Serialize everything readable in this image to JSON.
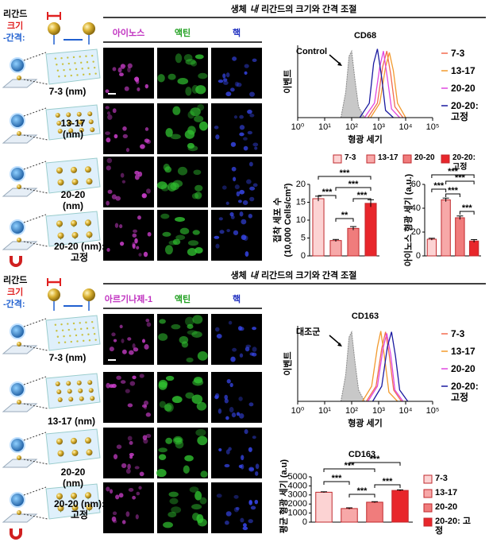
{
  "panels": [
    {
      "title": [
        "생체",
        "내",
        "리간드의 크기와 간격 조절"
      ],
      "ligand": {
        "label": "리간드",
        "size": "크기",
        "spacing": "-간격:"
      },
      "columns": [
        "아이노스",
        "액틴",
        "핵"
      ],
      "rows": [
        "7-3 (nm)",
        "13-17 (nm)",
        "20-20 (nm)",
        "20-20 (nm): 고정"
      ],
      "flow": {
        "type": "line",
        "title": "CD68",
        "x_label": "형광 세기",
        "y_label": "이벤트",
        "xscale": "log",
        "xlim": [
          1,
          100000
        ],
        "xticks": [
          {
            "value": 1,
            "label": "10⁰"
          },
          {
            "value": 10,
            "label": "10¹"
          },
          {
            "value": 100,
            "label": "10²"
          },
          {
            "value": 1000,
            "label": "10³"
          },
          {
            "value": 10000,
            "label": "10⁴"
          },
          {
            "value": 100000,
            "label": "10⁵"
          }
        ],
        "ylim": [
          0,
          100
        ],
        "control": {
          "label": "Control",
          "color": "#c8c8c8",
          "x": [
            40,
            60,
            80,
            100,
            130,
            180,
            300
          ],
          "values": [
            0,
            35,
            85,
            92,
            55,
            15,
            0
          ]
        },
        "series": [
          {
            "name": "7-3",
            "color": "#f26b4f",
            "x": [
              400,
              900,
              1400,
              2000,
              2800,
              4000,
              8000
            ],
            "values": [
              0,
              20,
              70,
              92,
              60,
              15,
              0
            ]
          },
          {
            "name": "13-17",
            "color": "#f29a2e",
            "x": [
              500,
              1100,
              1800,
              2500,
              3500,
              5000,
              10000
            ],
            "values": [
              0,
              20,
              70,
              90,
              65,
              20,
              0
            ]
          },
          {
            "name": "20-20",
            "color": "#e048e0",
            "x": [
              300,
              700,
              1100,
              1500,
              2100,
              3000,
              6000
            ],
            "values": [
              0,
              20,
              70,
              92,
              55,
              12,
              0
            ]
          },
          {
            "name": "20-20: 고정",
            "color": "#1a1aa0",
            "x": [
              200,
              450,
              650,
              900,
              1300,
              1800,
              3500
            ],
            "values": [
              0,
              20,
              75,
              95,
              55,
              10,
              0
            ]
          }
        ]
      },
      "bar_legend": {
        "labels": [
          "7-3",
          "13-17",
          "20-20",
          "20-20: 고정"
        ],
        "colors": [
          "#fcd3d3",
          "#f7a8a8",
          "#f07c7c",
          "#e8262b"
        ]
      },
      "bars": [
        {
          "type": "bar",
          "y_label": [
            "접착 세포 수",
            "(10,000 Cells/cm²)"
          ],
          "values": [
            16,
            4.3,
            7.7,
            14.7
          ],
          "errors": [
            0.7,
            0.3,
            0.5,
            1.0
          ],
          "ylim": [
            0,
            20
          ],
          "yticks": [
            0,
            5,
            10,
            15,
            20
          ],
          "significance": [
            "***",
            "***",
            "***",
            "**",
            "***"
          ]
        },
        {
          "type": "bar",
          "y_label": [
            "아이노스 형광 세기 (a.u.)"
          ],
          "values": [
            14,
            47,
            32,
            12.5
          ],
          "errors": [
            0.8,
            1.5,
            1.5,
            1.2
          ],
          "ylim": [
            0,
            60
          ],
          "yticks": [
            0,
            20,
            40,
            60
          ],
          "significance": [
            "***",
            "***",
            "***",
            "***",
            "***"
          ]
        }
      ]
    },
    {
      "title": [
        "생체",
        "내",
        "리간드의 크기와 간격 조절"
      ],
      "ligand": {
        "label": "리간드",
        "size": "크기",
        "spacing": "-간격:"
      },
      "columns": [
        "아르기나제-1",
        "액틴",
        "핵"
      ],
      "rows": [
        "7-3 (nm)",
        "13-17 (nm)",
        "20-20 (nm)",
        "20-20 (nm): 고정"
      ],
      "flow": {
        "type": "line",
        "title": "CD163",
        "x_label": "형광 세기",
        "y_label": "이벤트",
        "xscale": "log",
        "xlim": [
          1,
          100000
        ],
        "xticks": [
          {
            "value": 1,
            "label": "10⁰"
          },
          {
            "value": 10,
            "label": "10¹"
          },
          {
            "value": 100,
            "label": "10²"
          },
          {
            "value": 1000,
            "label": "10³"
          },
          {
            "value": 10000,
            "label": "10⁴"
          },
          {
            "value": 100000,
            "label": "10⁵"
          }
        ],
        "ylim": [
          0,
          100
        ],
        "control": {
          "label": "대조군",
          "color": "#c8c8c8",
          "x": [
            40,
            60,
            80,
            100,
            130,
            180,
            300
          ],
          "values": [
            0,
            35,
            85,
            92,
            55,
            15,
            0
          ]
        },
        "series": [
          {
            "name": "7-3",
            "color": "#f26b4f",
            "x": [
              350,
              800,
              1300,
              1800,
              2500,
              3600,
              7000
            ],
            "values": [
              0,
              20,
              70,
              92,
              60,
              15,
              0
            ]
          },
          {
            "name": "13-17",
            "color": "#f29a2e",
            "x": [
              250,
              550,
              900,
              1200,
              1700,
              2400,
              5000
            ],
            "values": [
              0,
              20,
              72,
              93,
              55,
              12,
              0
            ]
          },
          {
            "name": "20-20",
            "color": "#e048e0",
            "x": [
              400,
              900,
              1450,
              2000,
              2800,
              4000,
              8000
            ],
            "values": [
              0,
              20,
              70,
              90,
              62,
              15,
              0
            ]
          },
          {
            "name": "20-20: 고정",
            "color": "#1a1aa0",
            "x": [
              600,
              1300,
              2100,
              3000,
              4200,
              6000,
              12000
            ],
            "values": [
              0,
              20,
              72,
              92,
              60,
              15,
              0
            ]
          }
        ]
      },
      "bar_legend": {
        "labels": [
          "7-3",
          "13-17",
          "20-20",
          "20-20: 고정"
        ],
        "colors": [
          "#fcd3d3",
          "#f7a8a8",
          "#f07c7c",
          "#e8262b"
        ]
      },
      "bars": [
        {
          "type": "bar",
          "title": "CD163",
          "y_label": [
            "평균 형광 세기 (a.u)"
          ],
          "values": [
            3300,
            1500,
            2200,
            3500
          ],
          "errors": [
            50,
            80,
            60,
            60
          ],
          "ylim": [
            0,
            5000
          ],
          "yticks": [
            0,
            1000,
            2000,
            3000,
            4000,
            5000
          ],
          "significance": [
            "***",
            "***",
            "***",
            "***",
            "***"
          ]
        }
      ]
    }
  ]
}
